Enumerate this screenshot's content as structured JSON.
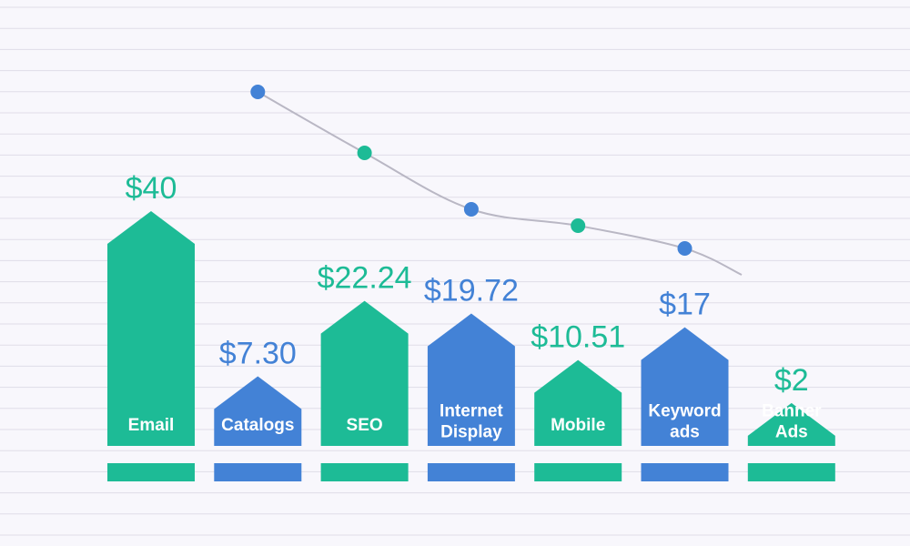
{
  "colors": {
    "green": "#1dbb96",
    "blue": "#4382d6",
    "background": "#f8f7fc",
    "grid": "#dfdde8",
    "trend_line": "#b9b7c4"
  },
  "chart_data": {
    "type": "bar",
    "title": "",
    "xlabel": "",
    "ylabel": "",
    "ylim": [
      0,
      40
    ],
    "grid": true,
    "categories": [
      "Email",
      "Catalogs",
      "SEO",
      "Internet Display",
      "Mobile",
      "Keyword ads",
      "Banner Ads"
    ],
    "values": [
      40,
      7.3,
      22.24,
      19.72,
      10.51,
      17,
      2
    ],
    "value_labels": [
      "$40",
      "$7.30",
      "$22.24",
      "$19.72",
      "$10.51",
      "$17",
      "$2"
    ],
    "category_label_lines": [
      [
        "Email"
      ],
      [
        "Catalogs"
      ],
      [
        "SEO"
      ],
      [
        "Internet",
        "Display"
      ],
      [
        "Mobile"
      ],
      [
        "Keyword",
        "ads"
      ],
      [
        "Banner",
        "Ads"
      ]
    ],
    "bar_colors": [
      "#1dbb96",
      "#4382d6",
      "#1dbb96",
      "#4382d6",
      "#1dbb96",
      "#4382d6",
      "#1dbb96"
    ],
    "trend_markers": [
      {
        "category": "Catalogs",
        "color": "#4382d6"
      },
      {
        "category": "SEO",
        "color": "#1dbb96"
      },
      {
        "category": "Internet Display",
        "color": "#4382d6"
      },
      {
        "category": "Mobile",
        "color": "#1dbb96"
      },
      {
        "category": "Keyword ads",
        "color": "#4382d6"
      }
    ]
  }
}
